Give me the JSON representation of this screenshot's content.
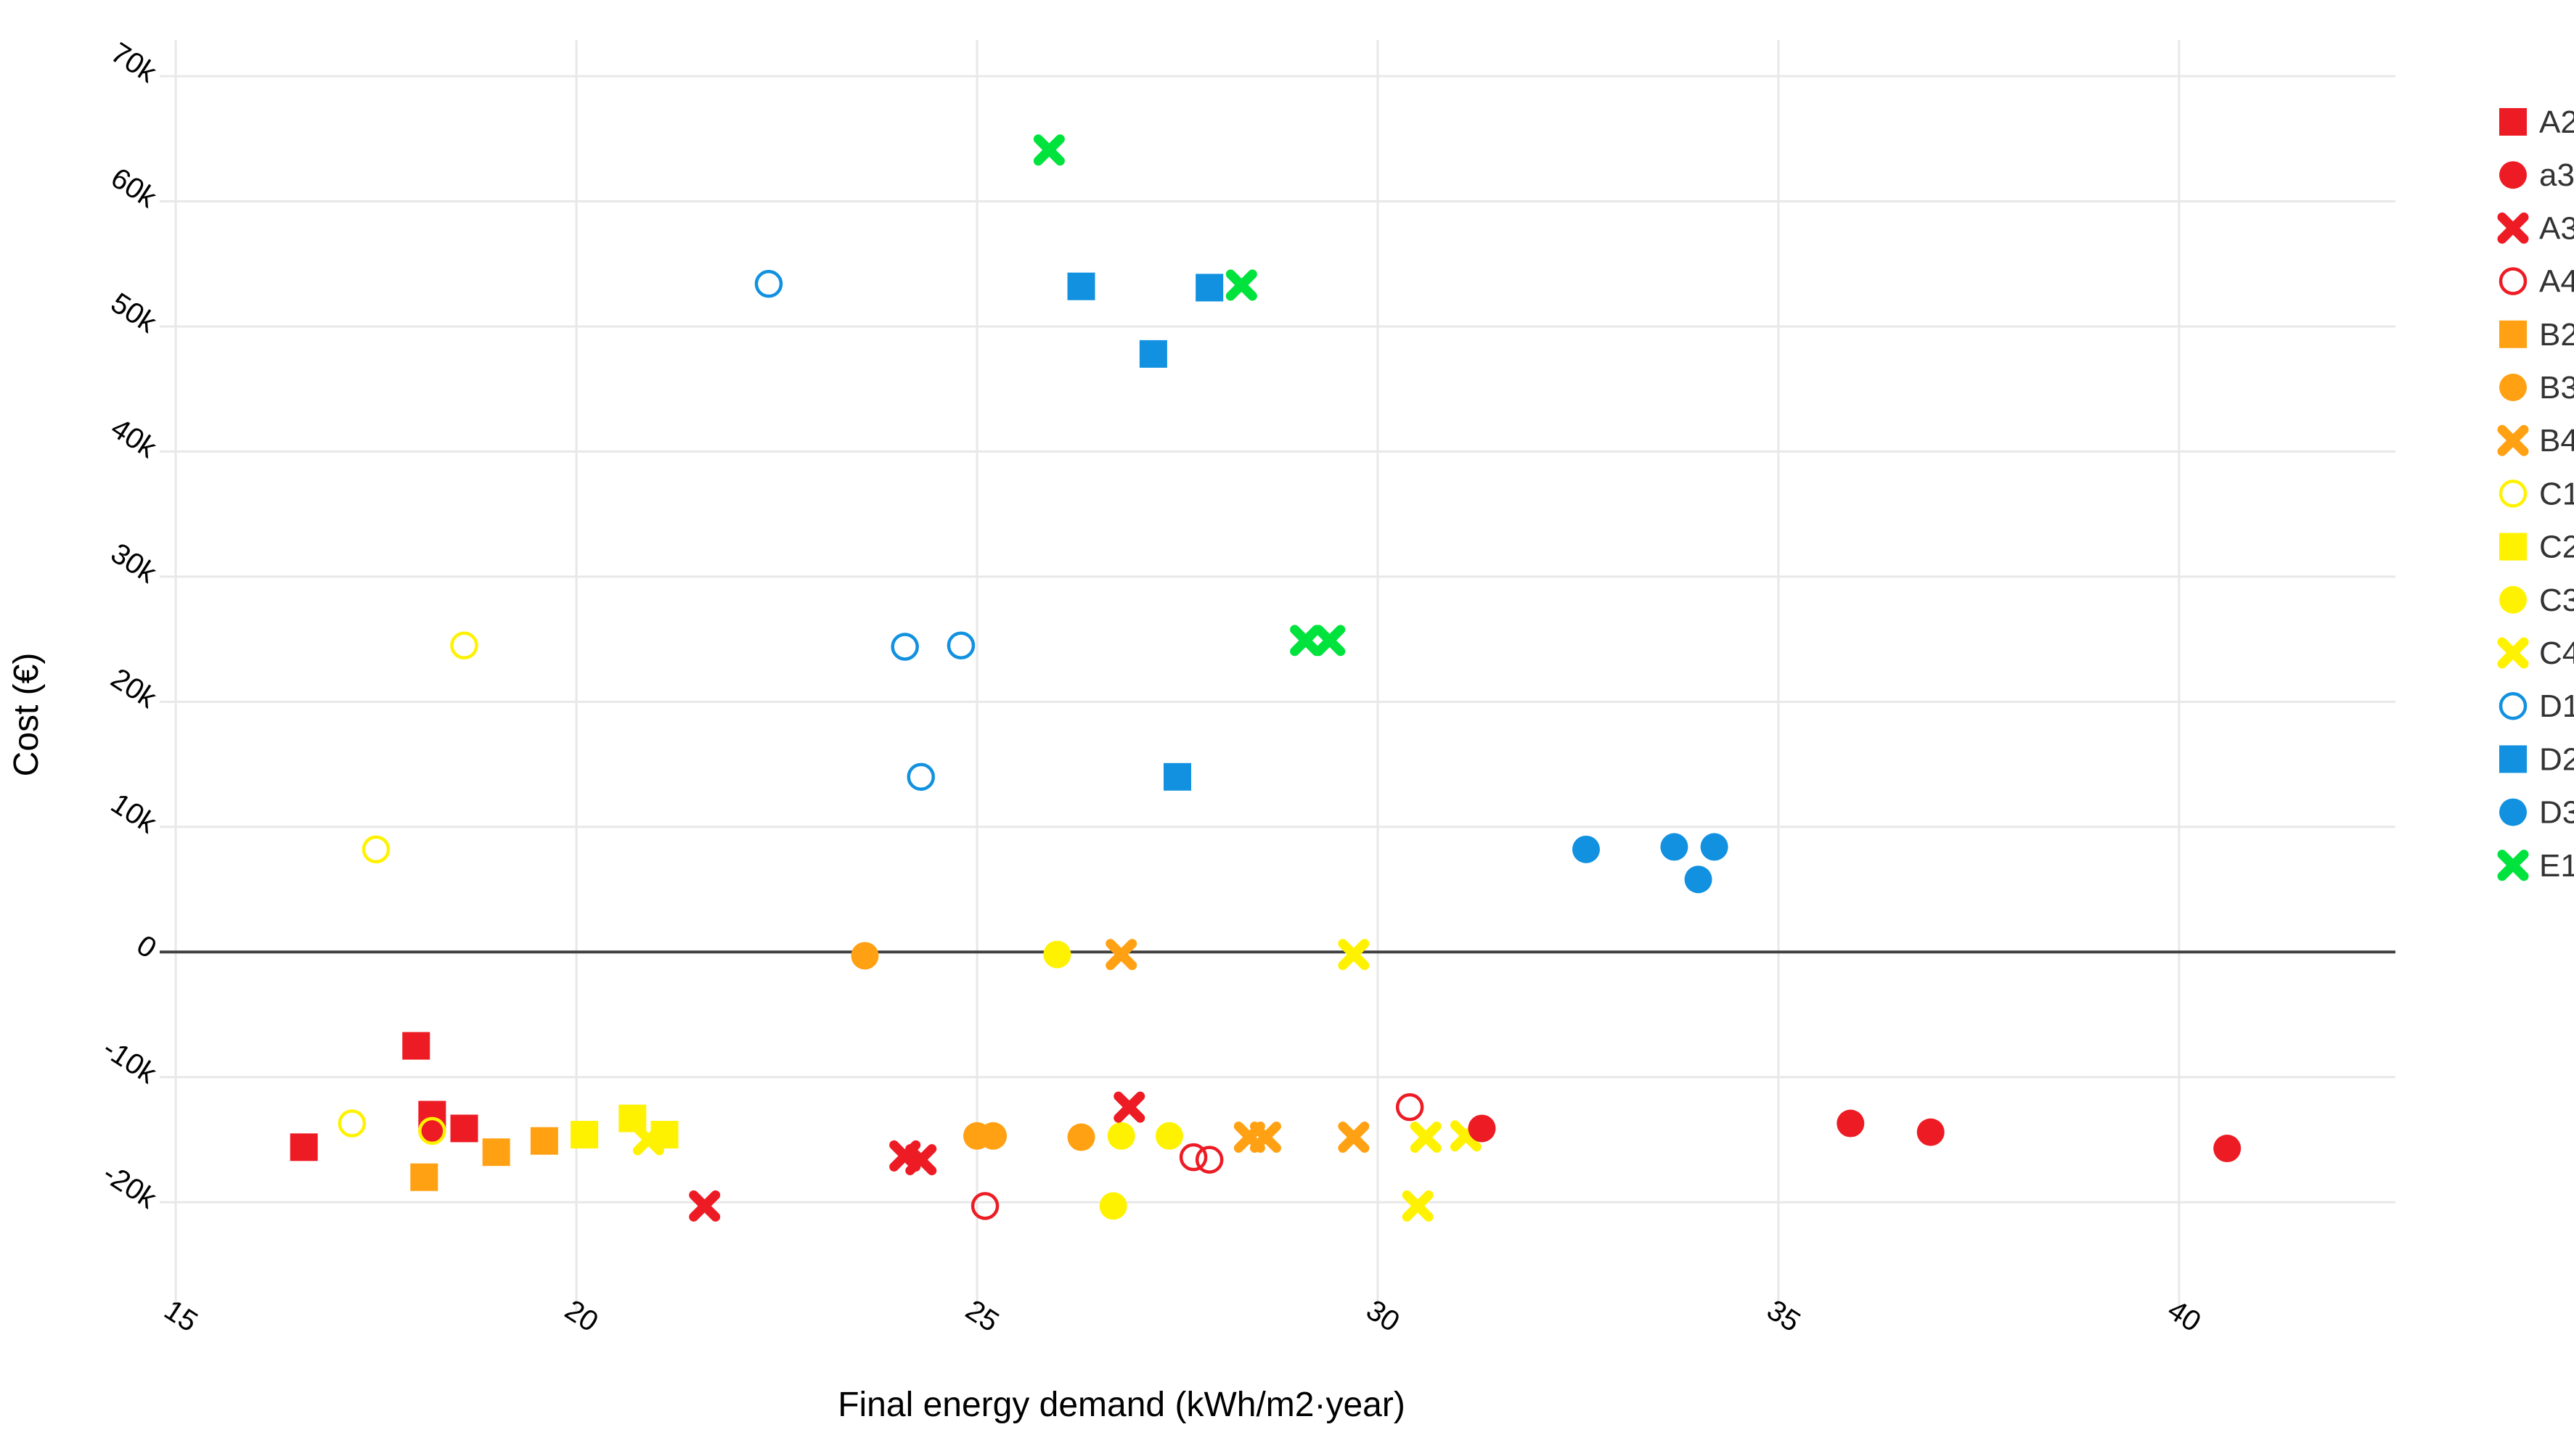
{
  "chart_data": {
    "type": "scatter",
    "title": "",
    "xlabel": "Final energy demand (kWh/m2·year)",
    "ylabel": "Cost (€)",
    "xlim": [
      14.8,
      42.7
    ],
    "ylim": [
      -27700,
      72900
    ],
    "grid": true,
    "legend_position": "right",
    "x_ticks": [
      15,
      20,
      25,
      30,
      35,
      40
    ],
    "x_tick_labels": [
      "15",
      "20",
      "25",
      "30",
      "35",
      "40"
    ],
    "y_ticks": [
      70000,
      60000,
      50000,
      40000,
      30000,
      20000,
      10000,
      0,
      -10000,
      -20000
    ],
    "y_tick_labels": [
      "70k",
      "60k",
      "50k",
      "40k",
      "30k",
      "20k",
      "10k",
      "0",
      "-10k",
      "-20k"
    ],
    "zero_line": {
      "y": 0,
      "color": "#404040"
    },
    "colors": {
      "red": "#ED1C24",
      "orange": "#FFA113",
      "yellow": "#FFF200",
      "blue": "#1191E0",
      "green": "#00E23C",
      "gridline": "#E8E8E8",
      "text": "#000000"
    },
    "series": [
      {
        "name": "A2",
        "marker": "square",
        "color": "#ED1C24",
        "points": [
          [
            16.6,
            -15600
          ],
          [
            18.0,
            -7500
          ],
          [
            18.2,
            -13000
          ],
          [
            18.6,
            -14100
          ]
        ]
      },
      {
        "name": "a3",
        "marker": "circle",
        "color": "#ED1C24",
        "points": [
          [
            18.2,
            -14200
          ],
          [
            31.3,
            -14100
          ],
          [
            35.9,
            -13700
          ],
          [
            36.9,
            -14400
          ],
          [
            40.6,
            -15700
          ]
        ]
      },
      {
        "name": "A3",
        "marker": "x",
        "color": "#ED1C24",
        "points": [
          [
            21.6,
            -20300
          ],
          [
            24.1,
            -16300
          ],
          [
            24.3,
            -16600
          ],
          [
            26.9,
            -12400
          ]
        ]
      },
      {
        "name": "A4",
        "marker": "circle-open",
        "color": "#ED1C24",
        "points": [
          [
            25.1,
            -20300
          ],
          [
            27.7,
            -16400
          ],
          [
            27.9,
            -16600
          ],
          [
            30.4,
            -12400
          ]
        ]
      },
      {
        "name": "B2",
        "marker": "square",
        "color": "#FFA113",
        "points": [
          [
            18.1,
            -18000
          ],
          [
            19.0,
            -16000
          ],
          [
            19.6,
            -15100
          ]
        ]
      },
      {
        "name": "B3",
        "marker": "circle",
        "color": "#FFA113",
        "points": [
          [
            23.6,
            -300
          ],
          [
            25.0,
            -14700
          ],
          [
            25.2,
            -14700
          ],
          [
            26.3,
            -14800
          ]
        ]
      },
      {
        "name": "B4",
        "marker": "x",
        "color": "#FFA113",
        "points": [
          [
            26.8,
            -200
          ],
          [
            28.4,
            -14800
          ],
          [
            28.6,
            -14800
          ],
          [
            29.7,
            -14800
          ]
        ]
      },
      {
        "name": "C1",
        "marker": "circle-open",
        "color": "#FFF200",
        "points": [
          [
            17.2,
            -13700
          ],
          [
            17.5,
            8200
          ],
          [
            18.2,
            -14300
          ],
          [
            18.6,
            24500
          ]
        ]
      },
      {
        "name": "C2",
        "marker": "square",
        "color": "#FFF200",
        "points": [
          [
            20.1,
            -14600
          ],
          [
            20.7,
            -13300
          ],
          [
            21.1,
            -14600
          ]
        ]
      },
      {
        "name": "C3",
        "marker": "circle",
        "color": "#FFF200",
        "points": [
          [
            26.0,
            -200
          ],
          [
            26.7,
            -20300
          ],
          [
            26.8,
            -14700
          ],
          [
            27.4,
            -14700
          ]
        ]
      },
      {
        "name": "C4",
        "marker": "x",
        "color": "#FFF200",
        "points": [
          [
            20.9,
            -15000
          ],
          [
            29.7,
            -200
          ],
          [
            30.5,
            -20300
          ],
          [
            30.6,
            -14800
          ],
          [
            31.1,
            -14700
          ]
        ]
      },
      {
        "name": "D1",
        "marker": "circle-open",
        "color": "#1191E0",
        "points": [
          [
            22.4,
            53400
          ],
          [
            24.1,
            24400
          ],
          [
            24.3,
            14000
          ],
          [
            24.8,
            24500
          ]
        ]
      },
      {
        "name": "D2",
        "marker": "square",
        "color": "#1191E0",
        "points": [
          [
            26.3,
            53200
          ],
          [
            27.2,
            47800
          ],
          [
            27.5,
            14000
          ],
          [
            27.9,
            53100
          ]
        ]
      },
      {
        "name": "D3",
        "marker": "circle",
        "color": "#1191E0",
        "points": [
          [
            32.6,
            8200
          ],
          [
            33.7,
            8400
          ],
          [
            34.0,
            5800
          ],
          [
            34.2,
            8400
          ]
        ]
      },
      {
        "name": "E1",
        "marker": "x",
        "color": "#00E23C",
        "points": [
          [
            25.9,
            64100
          ],
          [
            28.3,
            53300
          ],
          [
            29.1,
            24900
          ],
          [
            29.4,
            24900
          ]
        ]
      }
    ]
  }
}
